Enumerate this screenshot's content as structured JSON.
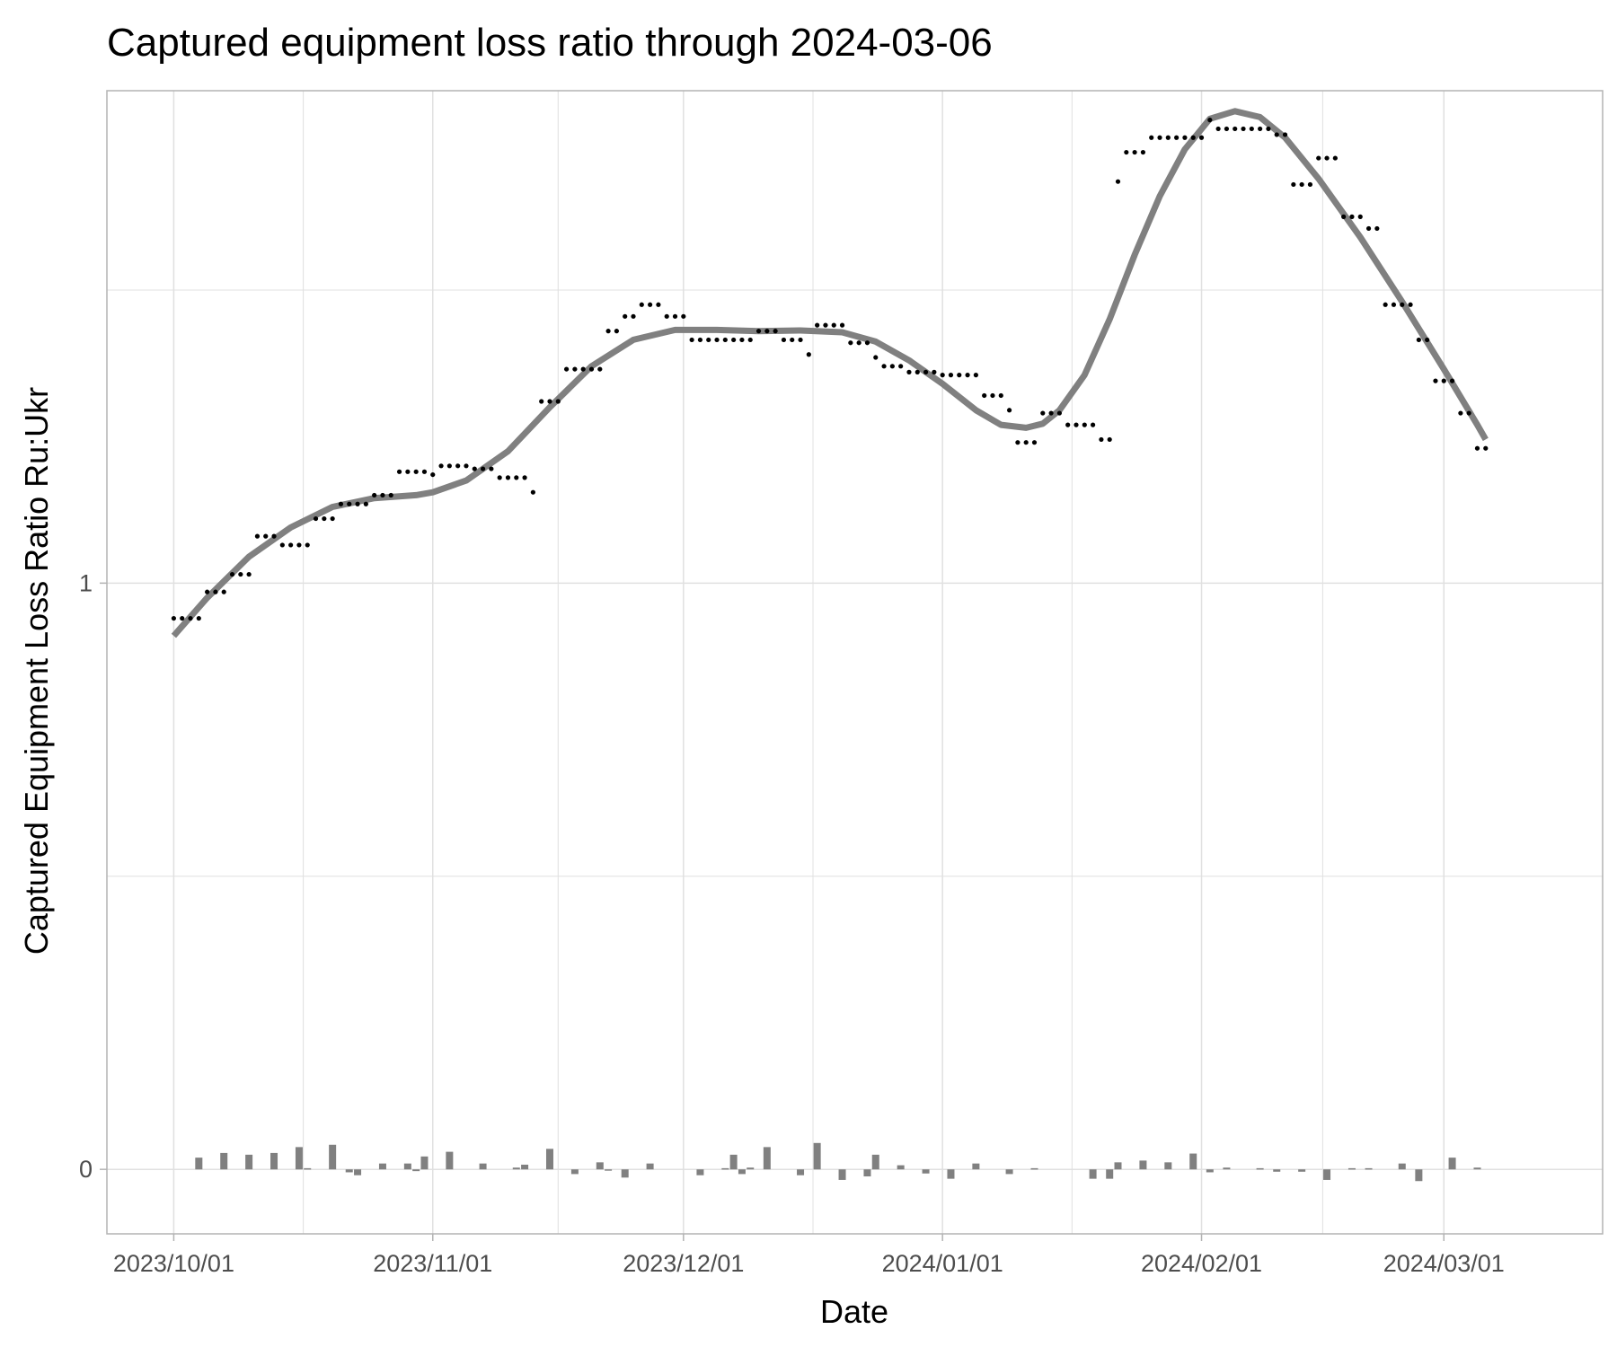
{
  "chart_data": {
    "type": "scatter",
    "title": "Captured equipment loss ratio through 2024-03-06",
    "xlabel": "Date",
    "ylabel": "Captured Equipment Loss Ratio Ru:Ukr",
    "x_ticks": [
      "2023/10/01",
      "2023/11/01",
      "2023/12/01",
      "2024/01/01",
      "2024/02/01",
      "2024/03/01"
    ],
    "y_ticks": [
      "0",
      "1"
    ],
    "xlim": [
      "2023-09-23",
      "2024-03-20"
    ],
    "ylim": [
      -0.11,
      1.84
    ],
    "grid": true,
    "colors": {
      "points": "#000000",
      "smooth": "#808080",
      "bars": "#808080",
      "grid": "#e0e0e0",
      "panel_border": "#b3b3b3"
    },
    "series": [
      {
        "kind": "points",
        "data": [
          [
            "2023-10-01",
            0.94
          ],
          [
            "2023-10-02",
            0.94
          ],
          [
            "2023-10-03",
            0.94
          ],
          [
            "2023-10-04",
            0.94
          ],
          [
            "2023-10-05",
            0.985
          ],
          [
            "2023-10-06",
            0.985
          ],
          [
            "2023-10-07",
            0.985
          ],
          [
            "2023-10-08",
            1.015
          ],
          [
            "2023-10-09",
            1.015
          ],
          [
            "2023-10-10",
            1.015
          ],
          [
            "2023-10-11",
            1.08
          ],
          [
            "2023-10-12",
            1.08
          ],
          [
            "2023-10-13",
            1.08
          ],
          [
            "2023-10-14",
            1.065
          ],
          [
            "2023-10-15",
            1.065
          ],
          [
            "2023-10-16",
            1.065
          ],
          [
            "2023-10-17",
            1.065
          ],
          [
            "2023-10-18",
            1.11
          ],
          [
            "2023-10-19",
            1.11
          ],
          [
            "2023-10-20",
            1.11
          ],
          [
            "2023-10-21",
            1.135
          ],
          [
            "2023-10-22",
            1.135
          ],
          [
            "2023-10-23",
            1.135
          ],
          [
            "2023-10-24",
            1.135
          ],
          [
            "2023-10-25",
            1.15
          ],
          [
            "2023-10-26",
            1.15
          ],
          [
            "2023-10-27",
            1.15
          ],
          [
            "2023-10-28",
            1.19
          ],
          [
            "2023-10-29",
            1.19
          ],
          [
            "2023-10-30",
            1.19
          ],
          [
            "2023-10-31",
            1.19
          ],
          [
            "2023-11-01",
            1.185
          ],
          [
            "2023-11-02",
            1.2
          ],
          [
            "2023-11-03",
            1.2
          ],
          [
            "2023-11-04",
            1.2
          ],
          [
            "2023-11-05",
            1.2
          ],
          [
            "2023-11-06",
            1.195
          ],
          [
            "2023-11-07",
            1.195
          ],
          [
            "2023-11-08",
            1.195
          ],
          [
            "2023-11-09",
            1.18
          ],
          [
            "2023-11-10",
            1.18
          ],
          [
            "2023-11-11",
            1.18
          ],
          [
            "2023-11-12",
            1.18
          ],
          [
            "2023-11-13",
            1.155
          ],
          [
            "2023-11-14",
            1.31
          ],
          [
            "2023-11-15",
            1.31
          ],
          [
            "2023-11-16",
            1.31
          ],
          [
            "2023-11-17",
            1.365
          ],
          [
            "2023-11-18",
            1.365
          ],
          [
            "2023-11-19",
            1.365
          ],
          [
            "2023-11-20",
            1.365
          ],
          [
            "2023-11-21",
            1.365
          ],
          [
            "2023-11-22",
            1.43
          ],
          [
            "2023-11-23",
            1.43
          ],
          [
            "2023-11-24",
            1.455
          ],
          [
            "2023-11-25",
            1.455
          ],
          [
            "2023-11-26",
            1.475
          ],
          [
            "2023-11-27",
            1.475
          ],
          [
            "2023-11-28",
            1.475
          ],
          [
            "2023-11-29",
            1.455
          ],
          [
            "2023-11-30",
            1.455
          ],
          [
            "2023-12-01",
            1.455
          ],
          [
            "2023-12-02",
            1.415
          ],
          [
            "2023-12-03",
            1.415
          ],
          [
            "2023-12-04",
            1.415
          ],
          [
            "2023-12-05",
            1.415
          ],
          [
            "2023-12-06",
            1.415
          ],
          [
            "2023-12-07",
            1.415
          ],
          [
            "2023-12-08",
            1.415
          ],
          [
            "2023-12-09",
            1.415
          ],
          [
            "2023-12-10",
            1.43
          ],
          [
            "2023-12-11",
            1.43
          ],
          [
            "2023-12-12",
            1.43
          ],
          [
            "2023-12-13",
            1.415
          ],
          [
            "2023-12-14",
            1.415
          ],
          [
            "2023-12-15",
            1.415
          ],
          [
            "2023-12-16",
            1.39
          ],
          [
            "2023-12-17",
            1.44
          ],
          [
            "2023-12-18",
            1.44
          ],
          [
            "2023-12-19",
            1.44
          ],
          [
            "2023-12-20",
            1.44
          ],
          [
            "2023-12-21",
            1.41
          ],
          [
            "2023-12-22",
            1.41
          ],
          [
            "2023-12-23",
            1.41
          ],
          [
            "2023-12-24",
            1.385
          ],
          [
            "2023-12-25",
            1.37
          ],
          [
            "2023-12-26",
            1.37
          ],
          [
            "2023-12-27",
            1.37
          ],
          [
            "2023-12-28",
            1.36
          ],
          [
            "2023-12-29",
            1.36
          ],
          [
            "2023-12-30",
            1.36
          ],
          [
            "2023-12-31",
            1.36
          ],
          [
            "2024-01-01",
            1.355
          ],
          [
            "2024-01-02",
            1.355
          ],
          [
            "2024-01-03",
            1.355
          ],
          [
            "2024-01-04",
            1.355
          ],
          [
            "2024-01-05",
            1.355
          ],
          [
            "2024-01-06",
            1.32
          ],
          [
            "2024-01-07",
            1.32
          ],
          [
            "2024-01-08",
            1.32
          ],
          [
            "2024-01-09",
            1.295
          ],
          [
            "2024-01-10",
            1.24
          ],
          [
            "2024-01-11",
            1.24
          ],
          [
            "2024-01-12",
            1.24
          ],
          [
            "2024-01-13",
            1.29
          ],
          [
            "2024-01-14",
            1.29
          ],
          [
            "2024-01-15",
            1.29
          ],
          [
            "2024-01-16",
            1.27
          ],
          [
            "2024-01-17",
            1.27
          ],
          [
            "2024-01-18",
            1.27
          ],
          [
            "2024-01-19",
            1.27
          ],
          [
            "2024-01-20",
            1.245
          ],
          [
            "2024-01-21",
            1.245
          ],
          [
            "2024-01-22",
            1.685
          ],
          [
            "2024-01-23",
            1.735
          ],
          [
            "2024-01-24",
            1.735
          ],
          [
            "2024-01-25",
            1.735
          ],
          [
            "2024-01-26",
            1.76
          ],
          [
            "2024-01-27",
            1.76
          ],
          [
            "2024-01-28",
            1.76
          ],
          [
            "2024-01-29",
            1.76
          ],
          [
            "2024-01-30",
            1.76
          ],
          [
            "2024-01-31",
            1.76
          ],
          [
            "2024-02-01",
            1.76
          ],
          [
            "2024-02-02",
            1.79
          ],
          [
            "2024-02-03",
            1.775
          ],
          [
            "2024-02-04",
            1.775
          ],
          [
            "2024-02-05",
            1.775
          ],
          [
            "2024-02-06",
            1.775
          ],
          [
            "2024-02-07",
            1.775
          ],
          [
            "2024-02-08",
            1.775
          ],
          [
            "2024-02-09",
            1.775
          ],
          [
            "2024-02-10",
            1.765
          ],
          [
            "2024-02-11",
            1.765
          ],
          [
            "2024-02-12",
            1.68
          ],
          [
            "2024-02-13",
            1.68
          ],
          [
            "2024-02-14",
            1.68
          ],
          [
            "2024-02-15",
            1.725
          ],
          [
            "2024-02-16",
            1.725
          ],
          [
            "2024-02-17",
            1.725
          ],
          [
            "2024-02-18",
            1.625
          ],
          [
            "2024-02-19",
            1.625
          ],
          [
            "2024-02-20",
            1.625
          ],
          [
            "2024-02-21",
            1.605
          ],
          [
            "2024-02-22",
            1.605
          ],
          [
            "2024-02-23",
            1.475
          ],
          [
            "2024-02-24",
            1.475
          ],
          [
            "2024-02-25",
            1.475
          ],
          [
            "2024-02-26",
            1.475
          ],
          [
            "2024-02-27",
            1.415
          ],
          [
            "2024-02-28",
            1.415
          ],
          [
            "2024-02-29",
            1.345
          ],
          [
            "2024-03-01",
            1.345
          ],
          [
            "2024-03-02",
            1.345
          ],
          [
            "2024-03-03",
            1.29
          ],
          [
            "2024-03-04",
            1.29
          ],
          [
            "2024-03-05",
            1.23
          ],
          [
            "2024-03-06",
            1.23
          ]
        ]
      },
      {
        "kind": "smooth",
        "data": [
          [
            "2023-10-01",
            0.91
          ],
          [
            "2023-10-05",
            0.975
          ],
          [
            "2023-10-10",
            1.045
          ],
          [
            "2023-10-15",
            1.095
          ],
          [
            "2023-10-20",
            1.13
          ],
          [
            "2023-10-25",
            1.145
          ],
          [
            "2023-10-30",
            1.15
          ],
          [
            "2023-11-01",
            1.155
          ],
          [
            "2023-11-05",
            1.175
          ],
          [
            "2023-11-10",
            1.225
          ],
          [
            "2023-11-15",
            1.3
          ],
          [
            "2023-11-20",
            1.37
          ],
          [
            "2023-11-25",
            1.415
          ],
          [
            "2023-11-30",
            1.432
          ],
          [
            "2023-12-05",
            1.432
          ],
          [
            "2023-12-10",
            1.43
          ],
          [
            "2023-12-15",
            1.431
          ],
          [
            "2023-12-20",
            1.428
          ],
          [
            "2023-12-24",
            1.412
          ],
          [
            "2023-12-28",
            1.38
          ],
          [
            "2024-01-01",
            1.34
          ],
          [
            "2024-01-05",
            1.295
          ],
          [
            "2024-01-08",
            1.27
          ],
          [
            "2024-01-11",
            1.265
          ],
          [
            "2024-01-13",
            1.272
          ],
          [
            "2024-01-15",
            1.295
          ],
          [
            "2024-01-18",
            1.355
          ],
          [
            "2024-01-21",
            1.45
          ],
          [
            "2024-01-24",
            1.56
          ],
          [
            "2024-01-27",
            1.66
          ],
          [
            "2024-01-30",
            1.74
          ],
          [
            "2024-02-02",
            1.792
          ],
          [
            "2024-02-05",
            1.805
          ],
          [
            "2024-02-08",
            1.795
          ],
          [
            "2024-02-11",
            1.76
          ],
          [
            "2024-02-15",
            1.69
          ],
          [
            "2024-02-20",
            1.59
          ],
          [
            "2024-02-25",
            1.48
          ],
          [
            "2024-03-01",
            1.365
          ],
          [
            "2024-03-05",
            1.27
          ],
          [
            "2024-03-06",
            1.245
          ]
        ]
      },
      {
        "kind": "bars",
        "data": [
          [
            "2023-10-04",
            0.02
          ],
          [
            "2023-10-07",
            0.028
          ],
          [
            "2023-10-10",
            0.025
          ],
          [
            "2023-10-13",
            0.028
          ],
          [
            "2023-10-16",
            0.038
          ],
          [
            "2023-10-17",
            0.002
          ],
          [
            "2023-10-20",
            0.042
          ],
          [
            "2023-10-22",
            -0.005
          ],
          [
            "2023-10-23",
            -0.01
          ],
          [
            "2023-10-26",
            0.01
          ],
          [
            "2023-10-29",
            0.01
          ],
          [
            "2023-10-30",
            -0.003
          ],
          [
            "2023-10-31",
            0.022
          ],
          [
            "2023-11-03",
            0.03
          ],
          [
            "2023-11-07",
            0.01
          ],
          [
            "2023-11-11",
            0.003
          ],
          [
            "2023-11-12",
            0.008
          ],
          [
            "2023-11-15",
            0.035
          ],
          [
            "2023-11-18",
            -0.008
          ],
          [
            "2023-11-21",
            0.012
          ],
          [
            "2023-11-22",
            -0.002
          ],
          [
            "2023-11-24",
            -0.014
          ],
          [
            "2023-11-27",
            0.01
          ],
          [
            "2023-12-03",
            -0.01
          ],
          [
            "2023-12-06",
            0.002
          ],
          [
            "2023-12-07",
            0.025
          ],
          [
            "2023-12-08",
            -0.008
          ],
          [
            "2023-12-09",
            0.003
          ],
          [
            "2023-12-11",
            0.038
          ],
          [
            "2023-12-15",
            -0.01
          ],
          [
            "2023-12-17",
            0.045
          ],
          [
            "2023-12-20",
            -0.018
          ],
          [
            "2023-12-23",
            -0.012
          ],
          [
            "2023-12-24",
            0.025
          ],
          [
            "2023-12-27",
            0.007
          ],
          [
            "2023-12-30",
            -0.007
          ],
          [
            "2024-01-02",
            -0.016
          ],
          [
            "2024-01-05",
            0.01
          ],
          [
            "2024-01-09",
            -0.008
          ],
          [
            "2024-01-12",
            0.002
          ],
          [
            "2024-01-19",
            -0.016
          ],
          [
            "2024-01-21",
            -0.016
          ],
          [
            "2024-01-22",
            0.012
          ],
          [
            "2024-01-25",
            0.015
          ],
          [
            "2024-01-28",
            0.012
          ],
          [
            "2024-01-31",
            0.027
          ],
          [
            "2024-02-02",
            -0.005
          ],
          [
            "2024-02-04",
            0.003
          ],
          [
            "2024-02-08",
            0.002
          ],
          [
            "2024-02-10",
            -0.004
          ],
          [
            "2024-02-13",
            -0.004
          ],
          [
            "2024-02-16",
            -0.018
          ],
          [
            "2024-02-19",
            0.002
          ],
          [
            "2024-02-21",
            0.002
          ],
          [
            "2024-02-25",
            0.01
          ],
          [
            "2024-02-27",
            -0.02
          ],
          [
            "2024-03-02",
            0.02
          ],
          [
            "2024-03-05",
            0.003
          ]
        ]
      }
    ]
  }
}
